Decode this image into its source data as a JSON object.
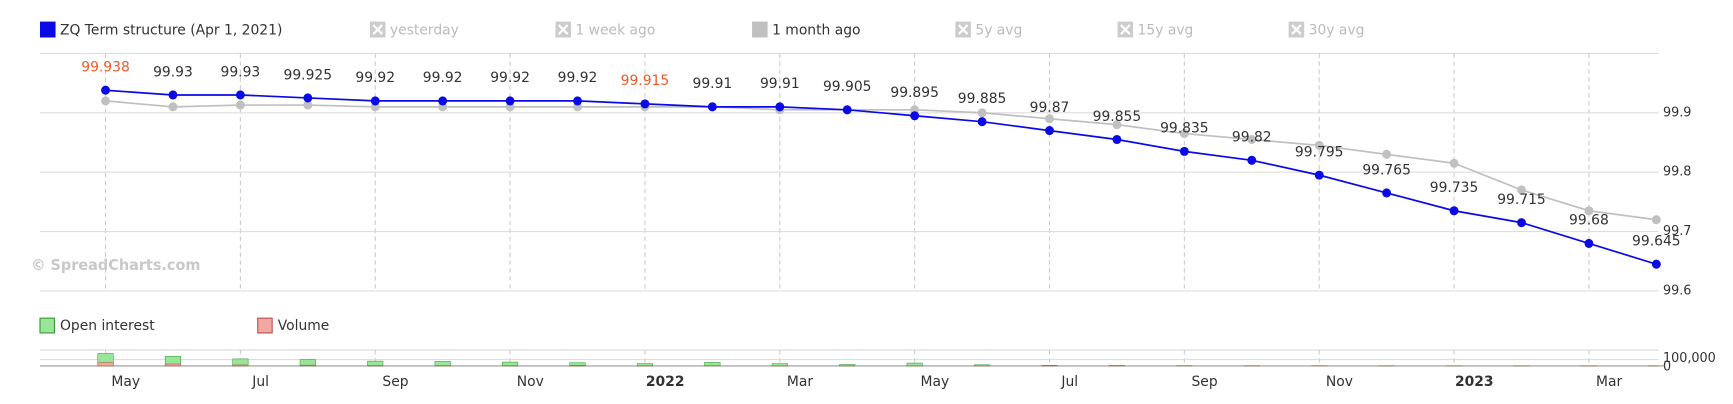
{
  "chart_data": [
    {
      "type": "line",
      "x": [
        "2021-04",
        "2021-05",
        "2021-06",
        "2021-07",
        "2021-08",
        "2021-09",
        "2021-10",
        "2021-11",
        "2021-12",
        "2022-01",
        "2022-02",
        "2022-03",
        "2022-04",
        "2022-05",
        "2022-06",
        "2022-07",
        "2022-08",
        "2022-09",
        "2022-10",
        "2022-11",
        "2022-12",
        "2023-01",
        "2023-02",
        "2023-03"
      ],
      "series": [
        {
          "name": "ZQ Term structure (Apr 1, 2021)",
          "color": "#0a0ae6",
          "visible": true,
          "data_labels": true,
          "values": [
            99.938,
            99.93,
            99.93,
            99.925,
            99.92,
            99.92,
            99.92,
            99.92,
            99.915,
            99.91,
            99.91,
            99.905,
            99.895,
            99.885,
            99.87,
            99.855,
            99.835,
            99.82,
            99.795,
            99.765,
            99.735,
            99.715,
            99.68,
            99.645
          ]
        },
        {
          "name": "yesterday",
          "visible": false
        },
        {
          "name": "1 week ago",
          "visible": false
        },
        {
          "name": "1 month ago",
          "color": "#c0c0c0",
          "visible": true,
          "data_labels": false,
          "values": [
            99.92,
            99.91,
            99.913,
            99.913,
            99.91,
            99.91,
            99.91,
            99.91,
            99.91,
            99.91,
            99.905,
            99.905,
            99.905,
            99.9,
            99.89,
            99.88,
            99.865,
            99.855,
            99.845,
            99.83,
            99.815,
            99.77,
            99.735,
            99.72
          ]
        },
        {
          "name": "5y avg",
          "visible": false
        },
        {
          "name": "15y avg",
          "visible": false
        },
        {
          "name": "30y avg",
          "visible": false
        }
      ],
      "highlighted_labels": [
        0,
        8
      ],
      "highlight_color": "#f05a28",
      "ylim": [
        99.6,
        100.0
      ],
      "yticks": [
        99.6,
        99.7,
        99.8,
        99.9
      ],
      "grid": true
    },
    {
      "type": "bar",
      "series": [
        {
          "name": "Open interest",
          "color": "#98e698",
          "values": [
            195000,
            150000,
            110000,
            100000,
            75000,
            70000,
            60000,
            50000,
            35000,
            55000,
            35000,
            22000,
            45000,
            18000,
            9000,
            7000,
            4000,
            3000,
            2500,
            2000,
            1500,
            1500,
            1000,
            800
          ]
        },
        {
          "name": "Volume",
          "color": "#f0a8a0",
          "values": [
            50000,
            30000,
            15000,
            12000,
            6000,
            5000,
            4000,
            8000,
            3000,
            3000,
            2000,
            1500,
            2000,
            1000,
            500,
            500,
            300,
            300,
            200,
            200,
            100,
            100,
            100,
            100
          ]
        }
      ],
      "ylim": [
        0,
        250000
      ],
      "yticks": [
        0,
        {
          "value": 100000,
          "label": "100,000"
        }
      ],
      "xticks": [
        {
          "value": "2021-05",
          "label": "May"
        },
        {
          "value": "2021-07",
          "label": "Jul"
        },
        {
          "value": "2021-09",
          "label": "Sep"
        },
        {
          "value": "2021-11",
          "label": "Nov"
        },
        {
          "value": "2022-01",
          "label": "2022"
        },
        {
          "value": "2022-03",
          "label": "Mar"
        },
        {
          "value": "2022-05",
          "label": "May"
        },
        {
          "value": "2022-07",
          "label": "Jul"
        },
        {
          "value": "2022-09",
          "label": "Sep"
        },
        {
          "value": "2022-11",
          "label": "Nov"
        },
        {
          "value": "2023-01",
          "label": "2023"
        },
        {
          "value": "2023-03",
          "label": "Mar"
        }
      ]
    }
  ],
  "watermark": "© SpreadCharts.com"
}
